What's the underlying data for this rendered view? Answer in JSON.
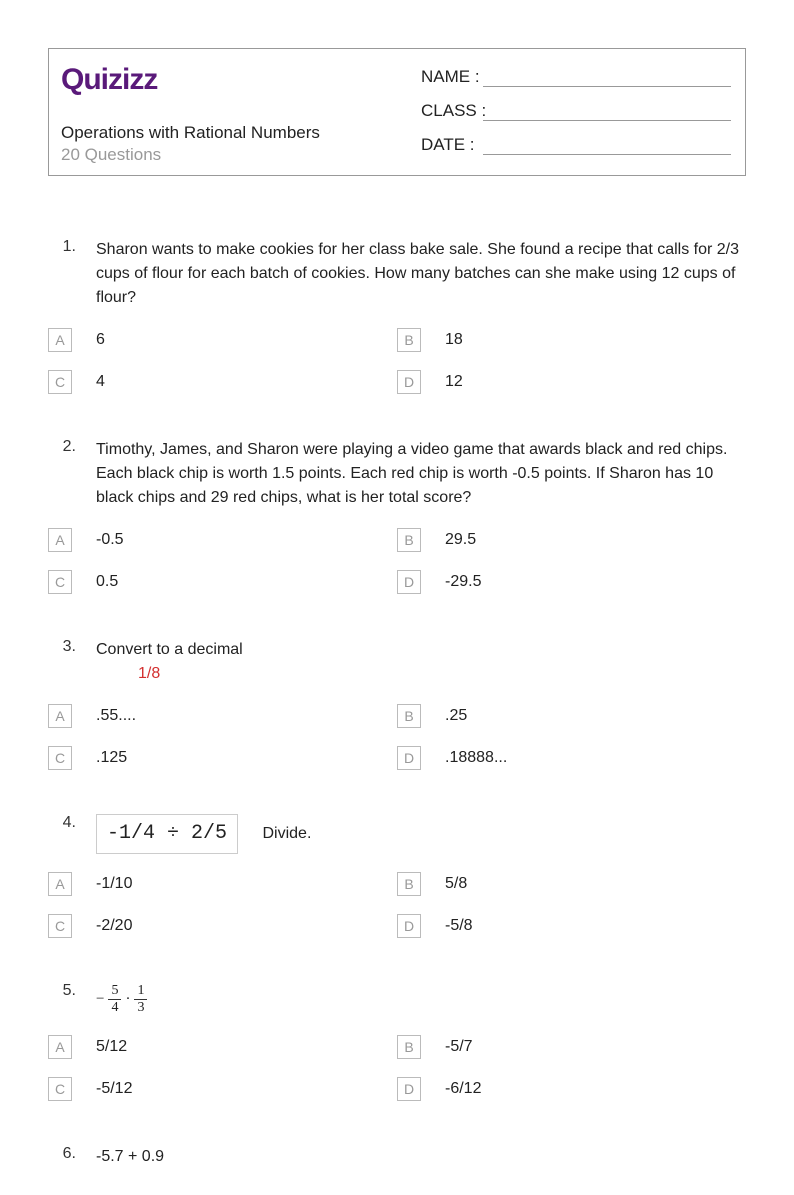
{
  "logo_text": "Quizizz",
  "quiz_title": "Operations with Rational Numbers",
  "quiz_subtitle": "20 Questions",
  "fields": {
    "name": "NAME :",
    "class": "CLASS :",
    "date": "DATE  :"
  },
  "colors": {
    "logo": "#5a1a7a",
    "text": "#222222",
    "muted": "#999999",
    "border": "#999999",
    "opt_border": "#bbbbbb",
    "red": "#d32f2f"
  },
  "questions": [
    {
      "num": "1.",
      "text": "Sharon wants to make cookies for her class bake sale. She found a recipe that calls for 2/3 cups of flour for each batch of cookies. How many batches can she make using 12 cups of flour?",
      "options": {
        "A": "6",
        "B": "18",
        "C": "4",
        "D": "12"
      }
    },
    {
      "num": "2.",
      "text": "Timothy, James, and Sharon were playing a video game that awards black and red chips. Each black chip is worth 1.5 points. Each red chip is worth -0.5 points. If Sharon has 10 black chips and 29 red chips, what is her total score?",
      "options": {
        "A": "-0.5",
        "B": "29.5",
        "C": "0.5",
        "D": "-29.5"
      }
    },
    {
      "num": "3.",
      "text": "Convert to a decimal",
      "extra_red": "1/8",
      "options": {
        "A": ".55....",
        "B": ".25",
        "C": ".125",
        "D": ".18888..."
      }
    },
    {
      "num": "4.",
      "boxed": "-1/4 ÷ 2/5",
      "after_box": "Divide.",
      "options": {
        "A": "-1/10",
        "B": "5/8",
        "C": "-2/20",
        "D": "-5/8"
      }
    },
    {
      "num": "5.",
      "frac_expr": {
        "neg": "−",
        "f1_top": "5",
        "f1_bot": "4",
        "dot": "·",
        "f2_top": "1",
        "f2_bot": "3"
      },
      "options": {
        "A": "5/12",
        "B": "-5/7",
        "C": "-5/12",
        "D": "-6/12"
      }
    },
    {
      "num": "6.",
      "text": "-5.7 + 0.9"
    }
  ],
  "opt_letters": {
    "A": "A",
    "B": "B",
    "C": "C",
    "D": "D"
  }
}
